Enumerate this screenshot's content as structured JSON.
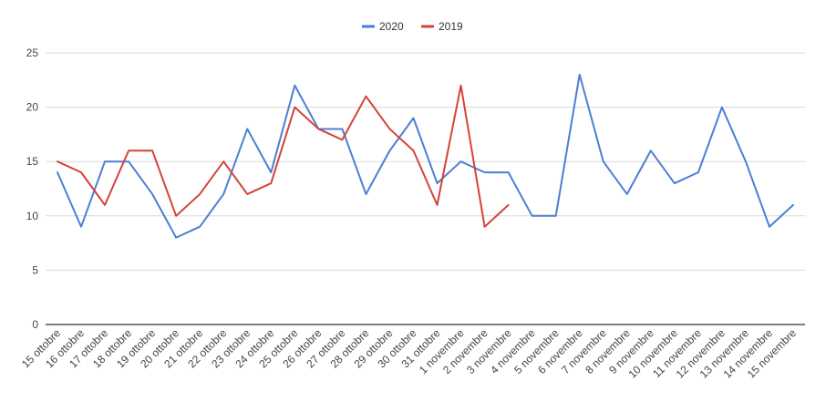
{
  "chart_data": {
    "type": "line",
    "title": "",
    "xlabel": "",
    "ylabel": "",
    "ylim": [
      0,
      25
    ],
    "yticks": [
      0,
      5,
      10,
      15,
      20,
      25
    ],
    "grid": true,
    "legend_position": "top-center",
    "categories": [
      "15 ottobre",
      "16 ottobre",
      "17 ottobre",
      "18 ottobre",
      "19 ottobre",
      "20 ottobre",
      "21 ottobre",
      "22 ottobre",
      "23 ottobre",
      "24 ottobre",
      "25 ottobre",
      "26 ottobre",
      "27 ottobre",
      "28 ottobre",
      "29 ottobre",
      "30 ottobre",
      "31 ottobre",
      "1 novembre",
      "2 novembre",
      "3 novembre",
      "4 novembre",
      "5 novembre",
      "6 novembre",
      "7 novembre",
      "8 novembre",
      "9 novembre",
      "10 novembre",
      "11 novembre",
      "12 novembre",
      "13 novembre",
      "14 novembre",
      "15 novembre"
    ],
    "series": [
      {
        "name": "2020",
        "color": "#4a7fd4",
        "values": [
          14,
          9,
          15,
          15,
          12,
          8,
          9,
          12,
          18,
          14,
          22,
          18,
          18,
          12,
          16,
          19,
          13,
          15,
          14,
          14,
          10,
          10,
          23,
          15,
          12,
          16,
          13,
          14,
          20,
          15,
          9,
          11
        ]
      },
      {
        "name": "2019",
        "color": "#d4433a",
        "values": [
          15,
          14,
          11,
          16,
          16,
          10,
          12,
          15,
          12,
          13,
          20,
          18,
          17,
          21,
          18,
          16,
          11,
          22,
          9,
          11,
          null,
          null,
          null,
          null,
          null,
          null,
          null,
          null,
          null,
          null,
          null,
          null
        ]
      }
    ]
  }
}
